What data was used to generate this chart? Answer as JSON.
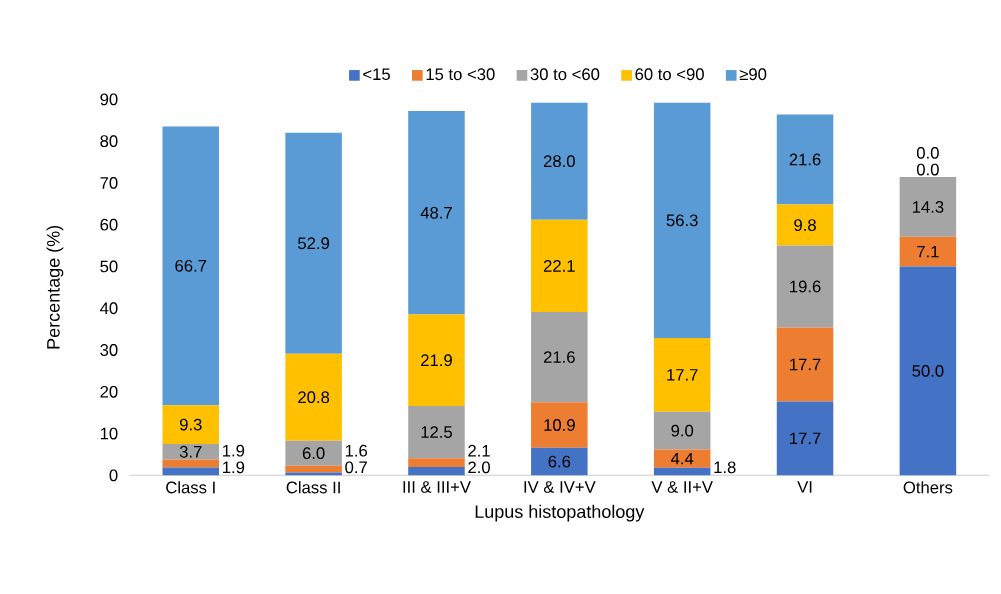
{
  "chart_data": {
    "type": "bar",
    "stacked": true,
    "xlabel": "Lupus histopathology",
    "ylabel": "Percentage (%)",
    "categories": [
      "Class I",
      "Class II",
      "III & III+V",
      "IV & IV+V",
      "V & II+V",
      "VI",
      "Others"
    ],
    "series": [
      {
        "name": "<15",
        "color": "#4472c4",
        "values": [
          1.9,
          0.7,
          2.0,
          6.6,
          1.8,
          17.7,
          50.0
        ],
        "value_labels": [
          "1.9",
          "0.7",
          "2.0",
          "6.6",
          "1.8",
          "17.7",
          "50.0"
        ]
      },
      {
        "name": "15 to <30",
        "color": "#ed7d31",
        "values": [
          1.9,
          1.6,
          2.1,
          10.9,
          4.4,
          17.7,
          7.1
        ],
        "value_labels": [
          "1.9",
          "1.6",
          "2.1",
          "10.9",
          "4.4",
          "17.7",
          "7.1"
        ]
      },
      {
        "name": "30 to <60",
        "color": "#a5a5a5",
        "values": [
          3.7,
          6.0,
          12.5,
          21.6,
          9.0,
          19.6,
          14.3
        ],
        "value_labels": [
          "3.7",
          "6.0",
          "12.5",
          "21.6",
          "9.0",
          "19.6",
          "14.3"
        ]
      },
      {
        "name": "60 to <90",
        "color": "#ffc000",
        "values": [
          9.3,
          20.8,
          21.9,
          22.1,
          17.7,
          9.8,
          0.0
        ],
        "value_labels": [
          "9.3",
          "20.8",
          "21.9",
          "22.1",
          "17.7",
          "9.8",
          "0.0"
        ]
      },
      {
        "name": "≥90",
        "color": "#5b9bd5",
        "values": [
          66.7,
          52.9,
          48.7,
          28.0,
          56.3,
          21.6,
          0.0
        ],
        "value_labels": [
          "66.7",
          "52.9",
          "48.7",
          "28.0",
          "56.3",
          "21.6",
          "0.0"
        ]
      }
    ],
    "ylim": [
      0,
      90
    ],
    "yticks": [
      0,
      10,
      20,
      30,
      40,
      50,
      60,
      70,
      80,
      90
    ],
    "legend": "top",
    "grid": false
  }
}
